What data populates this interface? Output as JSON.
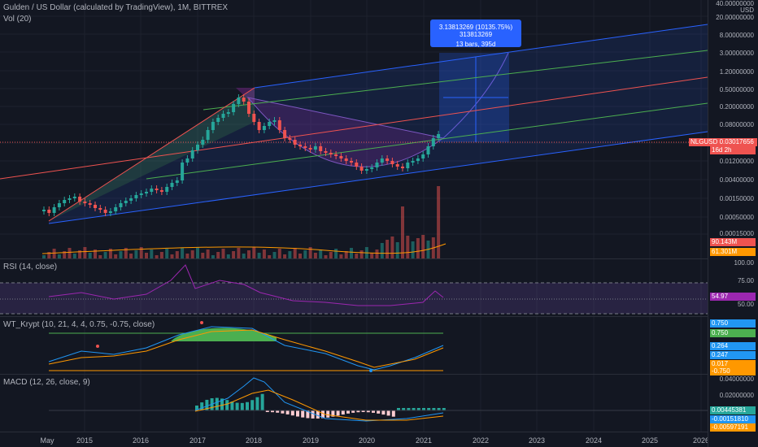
{
  "header": {
    "title": "Gulden / US Dollar (calculated by TradingView), 1M, BITTREX",
    "volume_label": "Vol (20)"
  },
  "price_axis": {
    "currency": "USD",
    "labels": [
      "40.00000000",
      "20.00000000",
      "8.00000000",
      "3.00000000",
      "1.20000000",
      "0.50000000",
      "0.20000000",
      "0.08000000",
      "0.03000000",
      "0.01200000",
      "0.00400000",
      "0.00150000",
      "0.00050000",
      "0.00015000"
    ],
    "last_price": {
      "symbol": "NLGUSD",
      "value": "0.03017656",
      "countdown": "16d 2h",
      "color": "#ef5350"
    },
    "vol_tags": [
      {
        "value": "90.143M",
        "color": "#ef5350"
      },
      {
        "value": "61.301M",
        "color": "#ff9800"
      }
    ]
  },
  "measure_tooltip": {
    "line1": "3.13813269 (10135.75%) 313813269",
    "line2": "13 bars, 395d"
  },
  "rsi": {
    "label": "RSI (14, close)",
    "axis": [
      "100.00",
      "75.00",
      "50.00"
    ],
    "value": "54.97",
    "value_color": "#9c27b0"
  },
  "wt": {
    "label": "WT_Krypt (10, 21, 4, 4, 0.75, -0.75, close)",
    "tags": [
      {
        "value": "0.750",
        "color": "#2196f3"
      },
      {
        "value": "0.750",
        "color": "#4caf50"
      },
      {
        "value": "0.264",
        "color": "#2196f3"
      },
      {
        "value": "0.247",
        "color": "#2196f3"
      },
      {
        "value": "0.017",
        "color": "#ff9800"
      },
      {
        "value": "-0.750",
        "color": "#ff9800"
      }
    ]
  },
  "macd": {
    "label": "MACD (12, 26, close, 9)",
    "axis": [
      "0.04000000",
      "0.02000000",
      "0.00000000"
    ],
    "tags": [
      {
        "value": "0.00445381",
        "color": "#26a69a"
      },
      {
        "value": "-0.00151810",
        "color": "#2196f3"
      },
      {
        "value": "-0.00597191",
        "color": "#ff9800"
      }
    ]
  },
  "time_axis": {
    "labels": [
      "May",
      "2015",
      "2016",
      "2017",
      "2018",
      "2019",
      "2020",
      "2021",
      "2022",
      "2023",
      "2024",
      "2025",
      "2026"
    ]
  },
  "colors": {
    "bull": "#26a69a",
    "bear": "#ef5350",
    "background": "#131722",
    "grid": "#1e222d",
    "pitchfork_blue": "#2962ff",
    "pitchfork_green": "#4caf50",
    "pitchfork_red": "#ef5350"
  }
}
